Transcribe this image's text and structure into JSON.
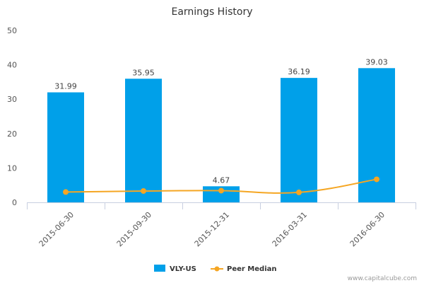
{
  "chart_data": {
    "type": "bar",
    "title": "Earnings History",
    "categories": [
      "2015-06-30",
      "2015-09-30",
      "2015-12-31",
      "2016-03-31",
      "2016-06-30"
    ],
    "series": [
      {
        "name": "VLY-US",
        "type": "bar",
        "values": [
          31.99,
          35.95,
          4.67,
          36.19,
          39.03
        ],
        "labels": [
          "31.99",
          "35.95",
          "4.67",
          "36.19",
          "39.03"
        ],
        "color": "#00a0e9"
      },
      {
        "name": "Peer Median",
        "type": "line",
        "values": [
          3.0,
          3.3,
          3.4,
          2.9,
          6.7
        ],
        "color": "#f5a623"
      }
    ],
    "ylim": [
      0,
      50
    ],
    "yticks": [
      "0",
      "10",
      "20",
      "30",
      "40",
      "50"
    ],
    "grid": false,
    "legend_position": "bottom"
  },
  "credit": "www.capitalcube.com"
}
